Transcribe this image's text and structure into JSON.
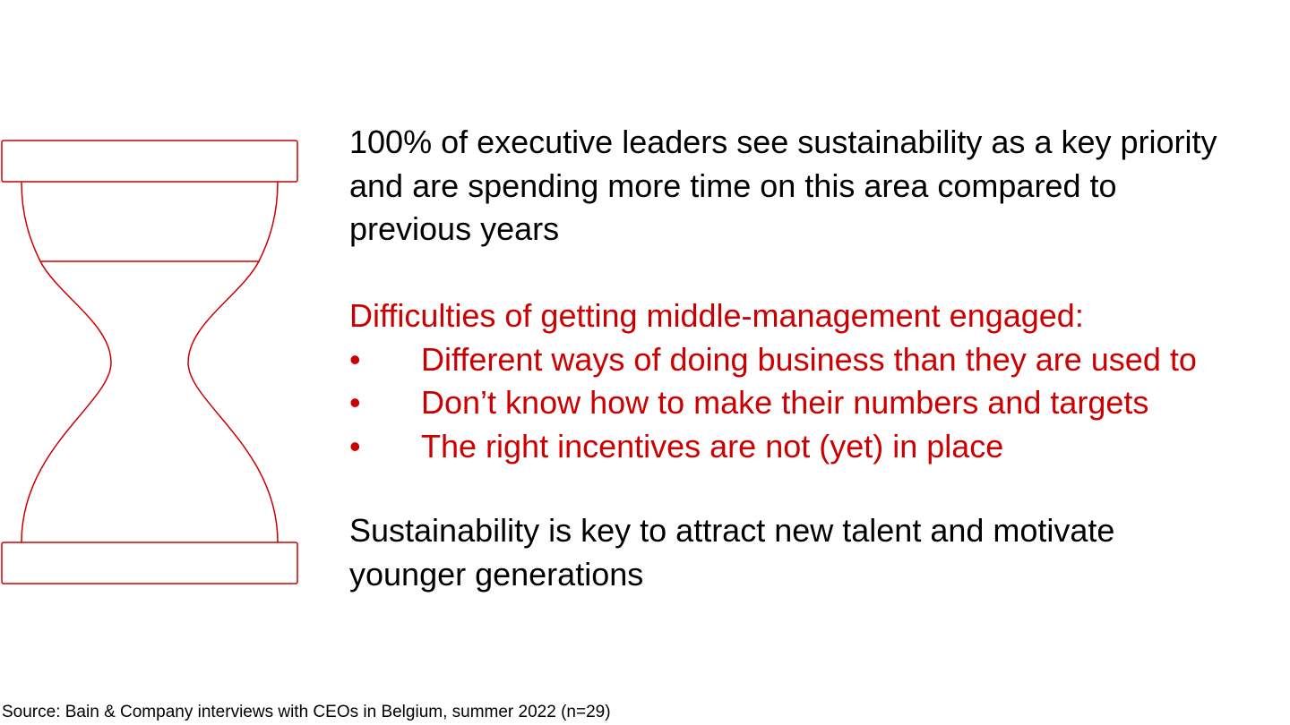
{
  "statement": "100% of executive leaders see sustainability as a key priority and are spending more time on this area compared to previous years",
  "difficulties": {
    "heading": "Difficulties of getting middle-management engaged:",
    "bullets": [
      "Different ways of doing business than they are used to",
      "Don’t know how to make their numbers and targets",
      "The right incentives are not (yet) in place"
    ]
  },
  "talent": "Sustainability is key to attract new talent and motivate younger generations",
  "source": "Source: Bain & Company interviews with CEOs in Belgium, summer 2022 (n=29)"
}
